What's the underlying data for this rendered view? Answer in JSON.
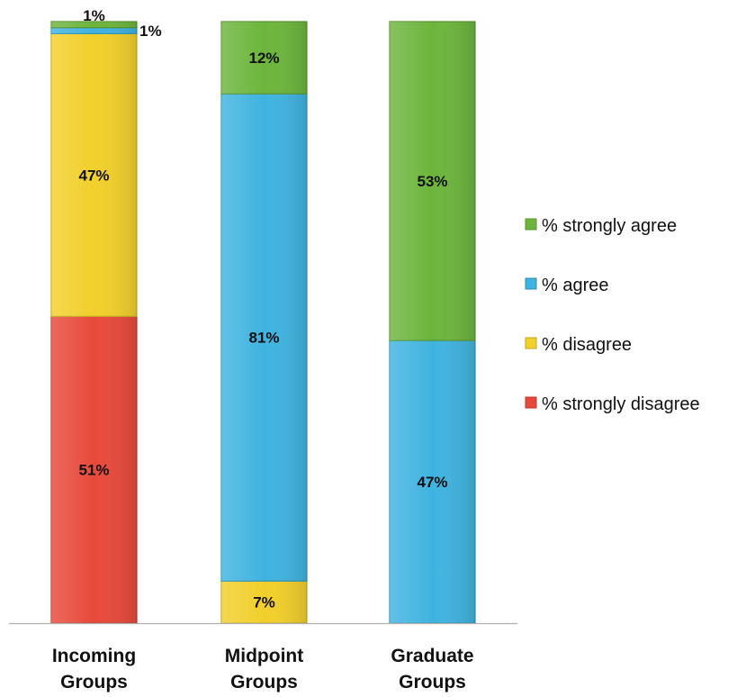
{
  "chart_data": {
    "type": "bar",
    "stacked": true,
    "title": "",
    "xlabel": "",
    "ylabel": "",
    "ylim": [
      0,
      100
    ],
    "grid": false,
    "legend_position": "right",
    "categories": [
      [
        "Incoming",
        "Groups"
      ],
      [
        "Midpoint",
        "Groups"
      ],
      [
        "Graduate",
        "Groups"
      ]
    ],
    "series": [
      {
        "name": "% strongly disagree",
        "color": "#e8493a",
        "values": [
          51,
          0,
          0
        ],
        "labels": [
          "51%",
          "",
          ""
        ]
      },
      {
        "name": "% disagree",
        "color": "#f2cf2b",
        "values": [
          47,
          7,
          0
        ],
        "labels": [
          "47%",
          "7%",
          ""
        ]
      },
      {
        "name": "% agree",
        "color": "#3fb3e0",
        "values": [
          1,
          81,
          47
        ],
        "labels": [
          "1%",
          "81%",
          "47%"
        ]
      },
      {
        "name": "% strongly agree",
        "color": "#6cb53c",
        "values": [
          1,
          12,
          53
        ],
        "labels": [
          "1%",
          "12%",
          "53%"
        ]
      }
    ],
    "legend_order": [
      "% strongly agree",
      "% agree",
      "% disagree",
      "% strongly disagree"
    ]
  }
}
